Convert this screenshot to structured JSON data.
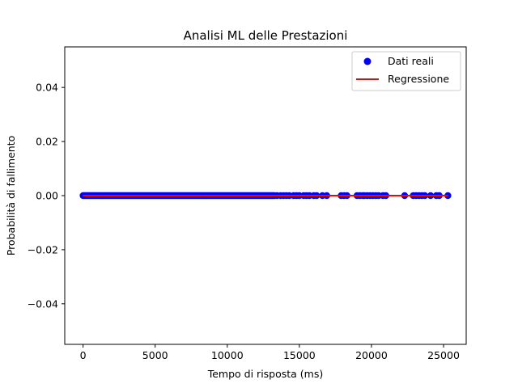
{
  "chart_data": {
    "type": "scatter",
    "title": "Analisi ML delle Prestazioni",
    "xlabel": "Tempo di risposta (ms)",
    "ylabel": "Probabilità di fallimento",
    "xlim": [
      -1270,
      26570
    ],
    "ylim": [
      -0.055,
      0.055
    ],
    "x_ticks": [
      0,
      5000,
      10000,
      15000,
      20000,
      25000
    ],
    "x_tick_labels": [
      "0",
      "5000",
      "10000",
      "15000",
      "20000",
      "25000"
    ],
    "y_ticks": [
      -0.04,
      -0.02,
      0.0,
      0.02,
      0.04
    ],
    "y_tick_labels": [
      "−0.04",
      "−0.02",
      "0.00",
      "0.02",
      "0.04"
    ],
    "grid": false,
    "legend_position": "top-right",
    "series": [
      {
        "name": "Dati reali",
        "kind": "scatter",
        "color": "#0000ff",
        "x_dense_range": [
          0,
          13300
        ],
        "x_sparse": [
          13450,
          13700,
          13900,
          14100,
          14300,
          14600,
          14800,
          15000,
          15300,
          15500,
          15700,
          16000,
          16200,
          16600,
          16900,
          17900,
          18100,
          18300,
          19000,
          19200,
          19400,
          19500,
          19700,
          19900,
          20100,
          20300,
          20500,
          20800,
          21000,
          22300,
          22900,
          23100,
          23300,
          23500,
          23700,
          24100,
          24500,
          24700,
          25300
        ],
        "y": 0.0
      },
      {
        "name": "Regressione",
        "kind": "line",
        "color": "#ff0000",
        "x": [
          0,
          25300
        ],
        "y": [
          0.0,
          0.0
        ]
      }
    ]
  }
}
